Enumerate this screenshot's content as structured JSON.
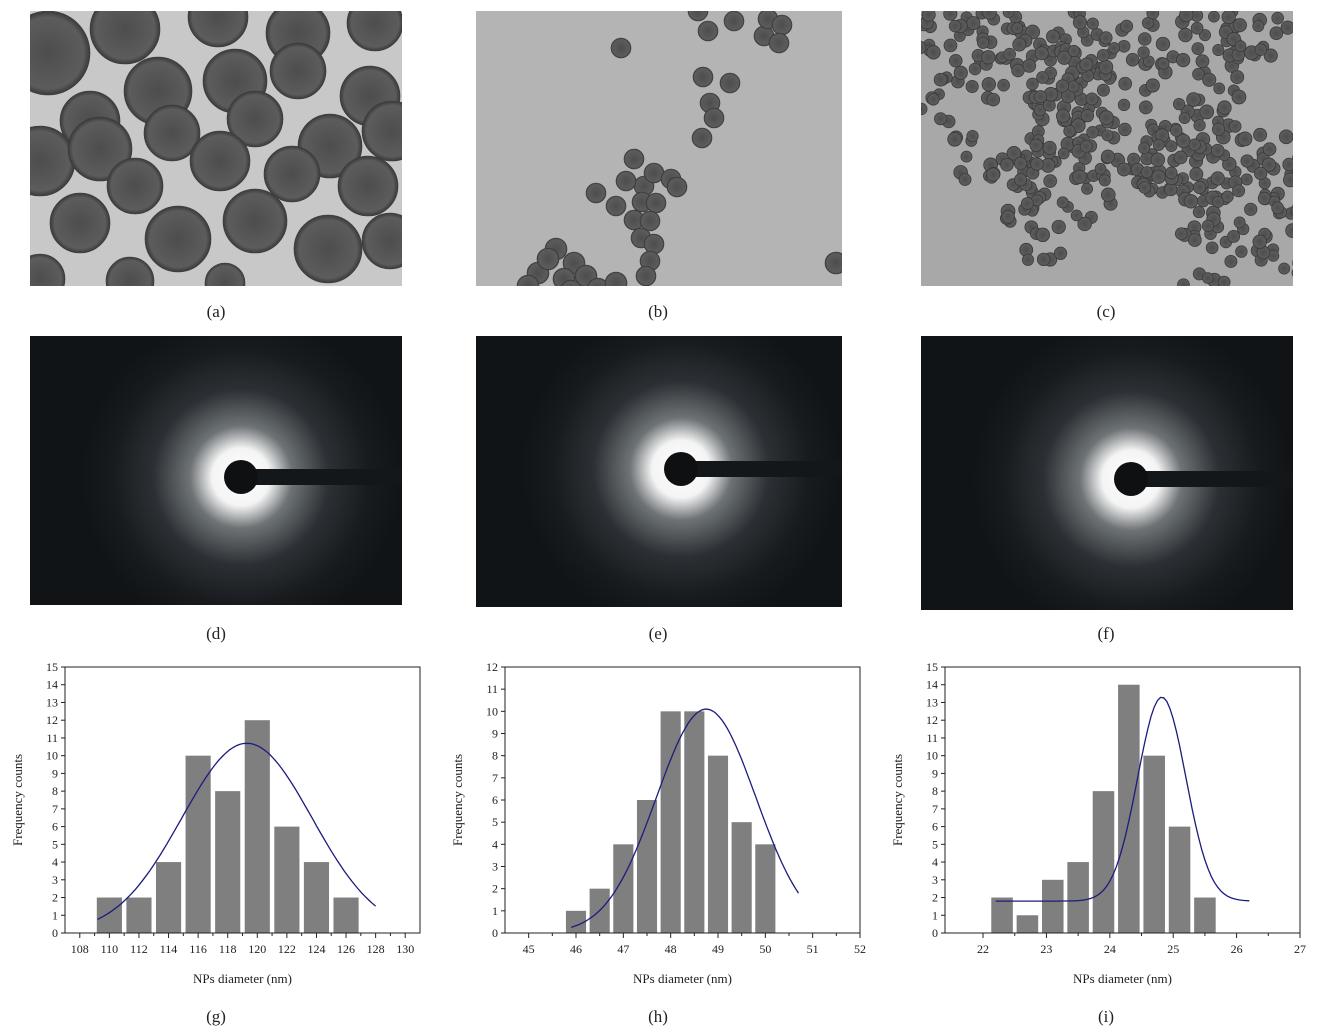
{
  "figure": {
    "panels": [
      {
        "id": "a",
        "label": "(a)",
        "kind": "tem-micrograph",
        "particle_density": "sparse-large"
      },
      {
        "id": "b",
        "label": "(b)",
        "kind": "tem-micrograph",
        "particle_density": "medium"
      },
      {
        "id": "c",
        "label": "(c)",
        "kind": "tem-micrograph",
        "particle_density": "dense-small"
      },
      {
        "id": "d",
        "label": "(d)",
        "kind": "electron-diffraction-pattern"
      },
      {
        "id": "e",
        "label": "(e)",
        "kind": "electron-diffraction-pattern"
      },
      {
        "id": "f",
        "label": "(f)",
        "kind": "electron-diffraction-pattern"
      },
      {
        "id": "g",
        "label": "(g)",
        "kind": "histogram"
      },
      {
        "id": "h",
        "label": "(h)",
        "kind": "histogram"
      },
      {
        "id": "i",
        "label": "(i)",
        "kind": "histogram"
      }
    ],
    "colors": {
      "bar": "#7f7f7f",
      "fit_curve": "#1c1c7c",
      "tem_background": "#b8b8b8",
      "particle": "#5a5a5a",
      "saed_background": "#111417"
    }
  },
  "chart_data": [
    {
      "panel": "g",
      "type": "bar",
      "xlabel": "NPs diameter (nm)",
      "ylabel": "Frequency counts",
      "xlim": [
        107,
        131
      ],
      "ylim": [
        0,
        15
      ],
      "xticks": [
        108,
        110,
        112,
        114,
        116,
        118,
        120,
        122,
        124,
        126,
        128,
        130
      ],
      "yticks": [
        0,
        1,
        2,
        3,
        4,
        5,
        6,
        7,
        8,
        9,
        10,
        11,
        12,
        13,
        14,
        15
      ],
      "bin_width": 2,
      "x": [
        110,
        112,
        114,
        116,
        118,
        120,
        122,
        124,
        126,
        128
      ],
      "values": [
        2,
        2,
        4,
        10,
        8,
        12,
        6,
        4,
        2,
        0
      ],
      "fit": {
        "type": "gaussian",
        "center": 119.3,
        "amplitude": 10.7,
        "sigma": 4.4,
        "x_range": [
          109.2,
          128.0
        ]
      }
    },
    {
      "panel": "h",
      "type": "bar",
      "xlabel": "NPs diameter (nm)",
      "ylabel": "Frequency counts",
      "xlim": [
        44.5,
        52
      ],
      "ylim": [
        0,
        12
      ],
      "xticks": [
        45,
        46,
        47,
        48,
        49,
        50,
        51,
        52
      ],
      "yticks": [
        0,
        1,
        2,
        3,
        4,
        5,
        6,
        7,
        8,
        9,
        10,
        11,
        12
      ],
      "bin_width": 0.5,
      "x": [
        46.0,
        46.5,
        47.0,
        47.5,
        48.0,
        48.5,
        49.0,
        49.5,
        50.0,
        50.5
      ],
      "values": [
        1,
        2,
        4,
        6,
        10,
        10,
        8,
        5,
        4,
        0
      ],
      "fit": {
        "type": "gaussian",
        "center": 48.75,
        "amplitude": 10.1,
        "sigma": 1.05,
        "x_range": [
          45.9,
          50.7
        ]
      }
    },
    {
      "panel": "i",
      "type": "bar",
      "xlabel": "NPs diameter (nm)",
      "ylabel": "Frequency counts",
      "xlim": [
        21.4,
        27
      ],
      "ylim": [
        0,
        15
      ],
      "xticks": [
        22,
        23,
        24,
        25,
        26,
        27
      ],
      "yticks": [
        0,
        1,
        2,
        3,
        4,
        5,
        6,
        7,
        8,
        9,
        10,
        11,
        12,
        13,
        14,
        15
      ],
      "bin_width": 0.4,
      "x": [
        22.3,
        22.7,
        23.1,
        23.5,
        23.9,
        24.3,
        24.7,
        25.1,
        25.5,
        25.9
      ],
      "values": [
        2,
        1,
        3,
        4,
        8,
        14,
        10,
        6,
        2,
        0
      ],
      "fit": {
        "type": "gaussian-plus-offset",
        "center": 24.82,
        "amplitude": 11.5,
        "sigma": 0.38,
        "offset": 1.8,
        "x_range": [
          22.2,
          26.2
        ]
      }
    }
  ]
}
